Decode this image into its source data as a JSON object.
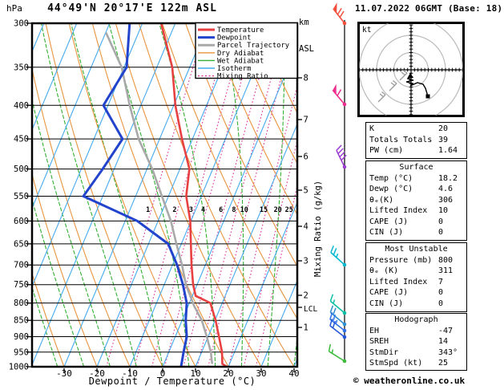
{
  "title": "44°49'N 20°17'E 122m ASL",
  "datetime": "11.07.2022 06GMT (Base: 18)",
  "units": {
    "pressure": "hPa",
    "km": "km",
    "asl": "ASL",
    "hodograph": "kt"
  },
  "axis": {
    "x_title": "Dewpoint / Temperature (°C)",
    "mixing_title": "Mixing Ratio (g/kg)",
    "lcl": "LCL"
  },
  "footer": "© weatheronline.co.uk",
  "colors": {
    "temperature": "#e84040",
    "dewpoint": "#2244cc",
    "parcel": "#a9a9a9",
    "dry_adiabat": "#e8953f",
    "wet_adiabat": "#33b033",
    "isotherm": "#45aaee",
    "mixing_ratio": "#dd3399",
    "axis": "#000000",
    "hodograph_rings": "#bbbbbb"
  },
  "legend": {
    "items": [
      {
        "label": "Temperature",
        "color": "#e84040",
        "thick": true,
        "dotted": false
      },
      {
        "label": "Dewpoint",
        "color": "#2244cc",
        "thick": true,
        "dotted": false
      },
      {
        "label": "Parcel Trajectory",
        "color": "#a9a9a9",
        "thick": true,
        "dotted": false
      },
      {
        "label": "Dry Adiabat",
        "color": "#e8953f",
        "thick": false,
        "dotted": false
      },
      {
        "label": "Wet Adiabat",
        "color": "#33b033",
        "thick": false,
        "dotted": false
      },
      {
        "label": "Isotherm",
        "color": "#45aaee",
        "thick": false,
        "dotted": false
      },
      {
        "label": "Mixing Ratio",
        "color": "#dd3399",
        "thick": false,
        "dotted": true
      }
    ]
  },
  "chart_data": {
    "type": "skewt-logp",
    "skewt": {
      "pressure_ticks": [
        300,
        350,
        400,
        450,
        500,
        550,
        600,
        650,
        700,
        750,
        800,
        850,
        900,
        950,
        1000
      ],
      "pressure_range": [
        300,
        1000
      ],
      "temp_ticks": [
        -30,
        -20,
        -10,
        0,
        10,
        20,
        30,
        40
      ],
      "km_ticks": [
        {
          "km": 8,
          "y": 97
        },
        {
          "km": 7,
          "y": 149
        },
        {
          "km": 6,
          "y": 195
        },
        {
          "km": 5,
          "y": 237
        },
        {
          "km": 4,
          "y": 282
        },
        {
          "km": 3,
          "y": 325
        },
        {
          "km": 2,
          "y": 368
        },
        {
          "km": 1,
          "y": 408
        }
      ],
      "lcl_y": 383,
      "mixing_ratio_lines": [
        1,
        2,
        3,
        4,
        6,
        8,
        10,
        15,
        20,
        25
      ],
      "series": {
        "temperature": [
          [
            300,
            -44.3
          ],
          [
            350,
            -35.3
          ],
          [
            400,
            -29.5
          ],
          [
            450,
            -23.2
          ],
          [
            500,
            -17.1
          ],
          [
            550,
            -14.6
          ],
          [
            600,
            -10.2
          ],
          [
            650,
            -7.1
          ],
          [
            700,
            -4.2
          ],
          [
            750,
            -1.2
          ],
          [
            780,
            1.0
          ],
          [
            800,
            6.4
          ],
          [
            850,
            10.2
          ],
          [
            900,
            13.3
          ],
          [
            950,
            16.2
          ],
          [
            990,
            17.8
          ],
          [
            1000,
            19.5
          ]
        ],
        "dewpoint": [
          [
            300,
            -53.9
          ],
          [
            350,
            -49.2
          ],
          [
            400,
            -51.4
          ],
          [
            450,
            -41.3
          ],
          [
            500,
            -43.5
          ],
          [
            550,
            -45.9
          ],
          [
            600,
            -26.3
          ],
          [
            650,
            -14.0
          ],
          [
            700,
            -8.6
          ],
          [
            750,
            -4.3
          ],
          [
            800,
            -0.8
          ],
          [
            850,
            1.1
          ],
          [
            900,
            3.5
          ],
          [
            950,
            4.5
          ],
          [
            1000,
            5.6
          ]
        ],
        "parcel": [
          [
            310,
            -59.9
          ],
          [
            350,
            -50.7
          ],
          [
            400,
            -43.4
          ],
          [
            450,
            -36.4
          ],
          [
            500,
            -28.4
          ],
          [
            550,
            -22.0
          ],
          [
            600,
            -16.1
          ],
          [
            650,
            -11.5
          ],
          [
            700,
            -7.1
          ],
          [
            750,
            -3.4
          ],
          [
            808,
            1.8
          ],
          [
            850,
            6.0
          ],
          [
            900,
            9.6
          ],
          [
            950,
            12.8
          ],
          [
            990,
            14.7
          ]
        ]
      }
    },
    "wind_barbs": [
      {
        "y": 29,
        "color": "#f2503c",
        "angle": -38,
        "flag": 1,
        "full": 2,
        "half": 0
      },
      {
        "y": 130,
        "color": "#ee2f8e",
        "angle": -40,
        "flag": 1,
        "full": 1,
        "half": 0
      },
      {
        "y": 208,
        "color": "#9b3fd1",
        "angle": -26,
        "flag": 0,
        "full": 4,
        "half": 0
      },
      {
        "y": 330,
        "color": "#09b8cf",
        "angle": -48,
        "flag": 0,
        "full": 2,
        "half": 1
      },
      {
        "y": 390,
        "color": "#0abfa5",
        "angle": -50,
        "flag": 0,
        "full": 1,
        "half": 1
      },
      {
        "y": 404,
        "color": "#2e8fd0",
        "angle": -50,
        "flag": 0,
        "full": 2,
        "half": 0
      },
      {
        "y": 412,
        "color": "#2f6fe8",
        "angle": -52,
        "flag": 0,
        "full": 2,
        "half": 1
      },
      {
        "y": 420,
        "color": "#2456d8",
        "angle": -52,
        "flag": 0,
        "full": 2,
        "half": 0
      },
      {
        "y": 450,
        "color": "#3cbb3c",
        "angle": -58,
        "flag": 0,
        "full": 1,
        "half": 1
      }
    ],
    "hodograph": {
      "rings_kt": [
        10,
        20,
        30
      ],
      "trace": [
        [
          512,
          93
        ],
        [
          509,
          98
        ],
        [
          516,
          100
        ],
        [
          507,
          102
        ],
        [
          515,
          104
        ],
        [
          512,
          107
        ],
        [
          521,
          103
        ],
        [
          528,
          105
        ],
        [
          531,
          110
        ],
        [
          534,
          120
        ]
      ],
      "marker": [
        534,
        120
      ],
      "gray_barbs": [
        [
          499,
          100
        ],
        [
          486,
          113
        ],
        [
          472,
          127
        ]
      ]
    }
  },
  "tables": [
    {
      "header": null,
      "rows": [
        [
          "K",
          "20"
        ],
        [
          "Totals Totals",
          "39"
        ],
        [
          "PW (cm)",
          "1.64"
        ]
      ]
    },
    {
      "header": "Surface",
      "rows": [
        [
          "Temp (°C)",
          "18.2"
        ],
        [
          "Dewp (°C)",
          "4.6"
        ],
        [
          "θₑ(K)",
          "306"
        ],
        [
          "Lifted Index",
          "10"
        ],
        [
          "CAPE (J)",
          "0"
        ],
        [
          "CIN (J)",
          "0"
        ]
      ]
    },
    {
      "header": "Most Unstable",
      "rows": [
        [
          "Pressure (mb)",
          "800"
        ],
        [
          "θₑ (K)",
          "311"
        ],
        [
          "Lifted Index",
          "7"
        ],
        [
          "CAPE (J)",
          "0"
        ],
        [
          "CIN (J)",
          "0"
        ]
      ]
    },
    {
      "header": "Hodograph",
      "rows": [
        [
          "EH",
          "-47"
        ],
        [
          "SREH",
          "14"
        ],
        [
          "StmDir",
          "343°"
        ],
        [
          "StmSpd (kt)",
          "25"
        ]
      ]
    }
  ]
}
